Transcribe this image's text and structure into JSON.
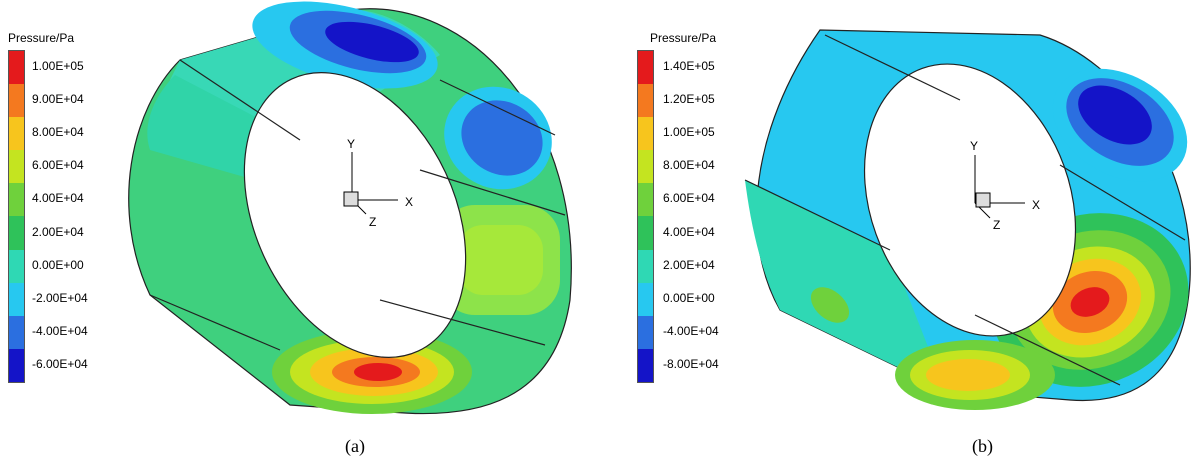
{
  "figure": {
    "panels": [
      {
        "id": "a",
        "caption": "(a)",
        "legend": {
          "title": "Pressure/Pa",
          "levels": [
            "1.00E+05",
            "9.00E+04",
            "8.00E+04",
            "6.00E+04",
            "4.00E+04",
            "2.00E+04",
            "0.00E+00",
            "-2.00E+04",
            "-4.00E+04",
            "-6.00E+04"
          ],
          "colors": [
            "#e41a1c",
            "#f4791f",
            "#f7c51d",
            "#c4e420",
            "#6fd13c",
            "#2fc25a",
            "#2fd8b4",
            "#27c8f0",
            "#2b6fe0",
            "#1414c8"
          ]
        },
        "axes": {
          "y": "Y",
          "x": "X",
          "z": "Z"
        }
      },
      {
        "id": "b",
        "caption": "(b)",
        "legend": {
          "title": "Pressure/Pa",
          "levels": [
            "1.40E+05",
            "1.20E+05",
            "1.00E+05",
            "8.00E+04",
            "6.00E+04",
            "4.00E+04",
            "2.00E+04",
            "0.00E+00",
            "-4.00E+04",
            "-8.00E+04"
          ],
          "colors": [
            "#e41a1c",
            "#f4791f",
            "#f7c51d",
            "#c4e420",
            "#6fd13c",
            "#2fc25a",
            "#2fd8b4",
            "#27c8f0",
            "#2b6fe0",
            "#1414c8"
          ]
        },
        "axes": {
          "y": "Y",
          "x": "X",
          "z": "Z"
        }
      }
    ]
  }
}
